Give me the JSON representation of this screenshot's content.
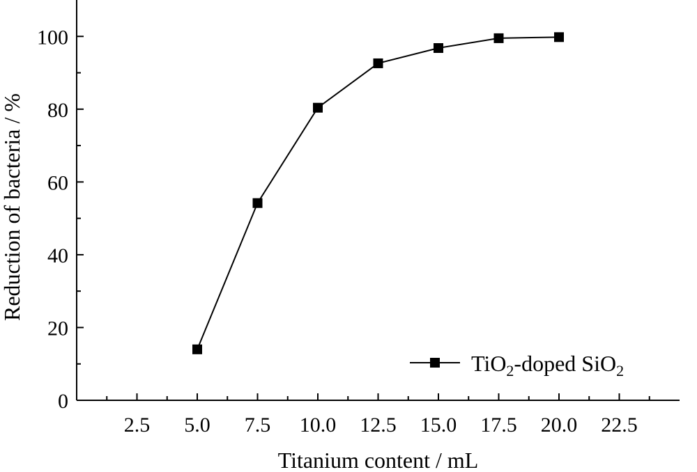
{
  "chart_data": {
    "type": "line",
    "xlabel": "Titanium content / mL",
    "ylabel": "Reduction of bacteria / %",
    "xlim": [
      0,
      25
    ],
    "ylim": [
      0,
      110
    ],
    "x_ticks": [
      "2.5",
      "5.0",
      "7.5",
      "10.0",
      "12.5",
      "15.0",
      "17.5",
      "20.0",
      "22.5"
    ],
    "y_ticks": [
      "0",
      "20",
      "40",
      "60",
      "80",
      "100"
    ],
    "x_tick_values": [
      2.5,
      5.0,
      7.5,
      10.0,
      12.5,
      15.0,
      17.5,
      20.0,
      22.5
    ],
    "y_tick_values": [
      0,
      20,
      40,
      60,
      80,
      100
    ],
    "grid": false,
    "legend_position": "bottom-right",
    "series": [
      {
        "name": "TiO2-doped SiO2",
        "color": "#000000",
        "marker": "square",
        "x": [
          5.0,
          7.5,
          10.0,
          12.5,
          15.0,
          17.5,
          20.0
        ],
        "y": [
          14.0,
          54.2,
          80.4,
          92.6,
          96.8,
          99.5,
          99.8
        ]
      }
    ],
    "legend": {
      "parts": [
        {
          "text": "TiO",
          "sub": false
        },
        {
          "text": "2",
          "sub": true
        },
        {
          "text": "-doped SiO",
          "sub": false
        },
        {
          "text": "2",
          "sub": true
        }
      ]
    }
  }
}
